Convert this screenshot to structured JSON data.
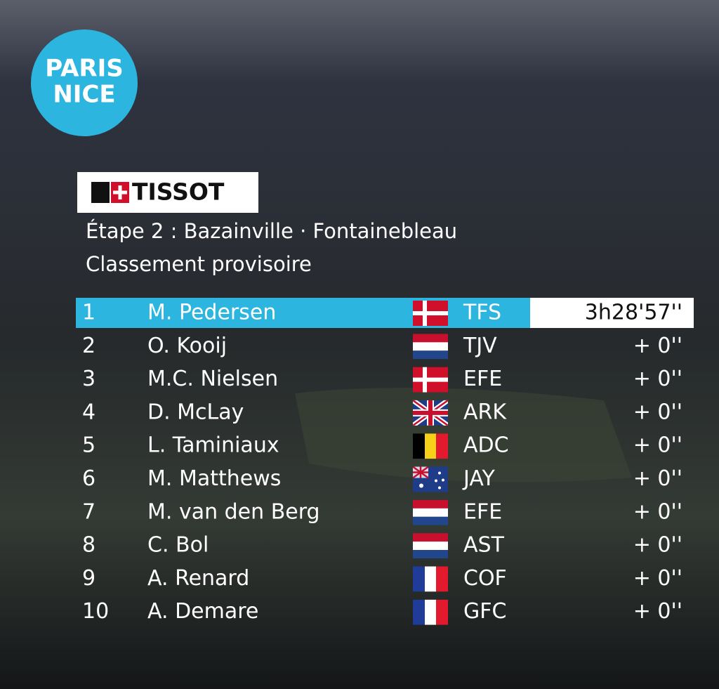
{
  "logo": {
    "line1": "PARIS",
    "line2": "NICE"
  },
  "sponsor": "TISSOT",
  "header": {
    "stage": "Étape 2 : Bazainville · Fontainebleau",
    "subtitle": "Classement provisoire"
  },
  "table": {
    "rows": [
      [
        "1",
        "M. Pedersen",
        "TFS",
        "3h28'57''"
      ],
      [
        "2",
        "O. Kooij",
        "TJV",
        "+ 0''"
      ],
      [
        "3",
        "M.C. Nielsen",
        "EFE",
        "+ 0''"
      ],
      [
        "4",
        "D. McLay",
        "ARK",
        "+ 0''"
      ],
      [
        "5",
        "L. Taminiaux",
        "ADC",
        "+ 0''"
      ],
      [
        "6",
        "M. Matthews",
        "JAY",
        "+ 0''"
      ],
      [
        "7",
        "M. van den Berg",
        "EFE",
        "+ 0''"
      ],
      [
        "8",
        "C. Bol",
        "AST",
        "+ 0''"
      ],
      [
        "9",
        "A. Renard",
        "COF",
        "+ 0''"
      ],
      [
        "10",
        "A. Demare",
        "GFC",
        "+ 0''"
      ]
    ]
  }
}
